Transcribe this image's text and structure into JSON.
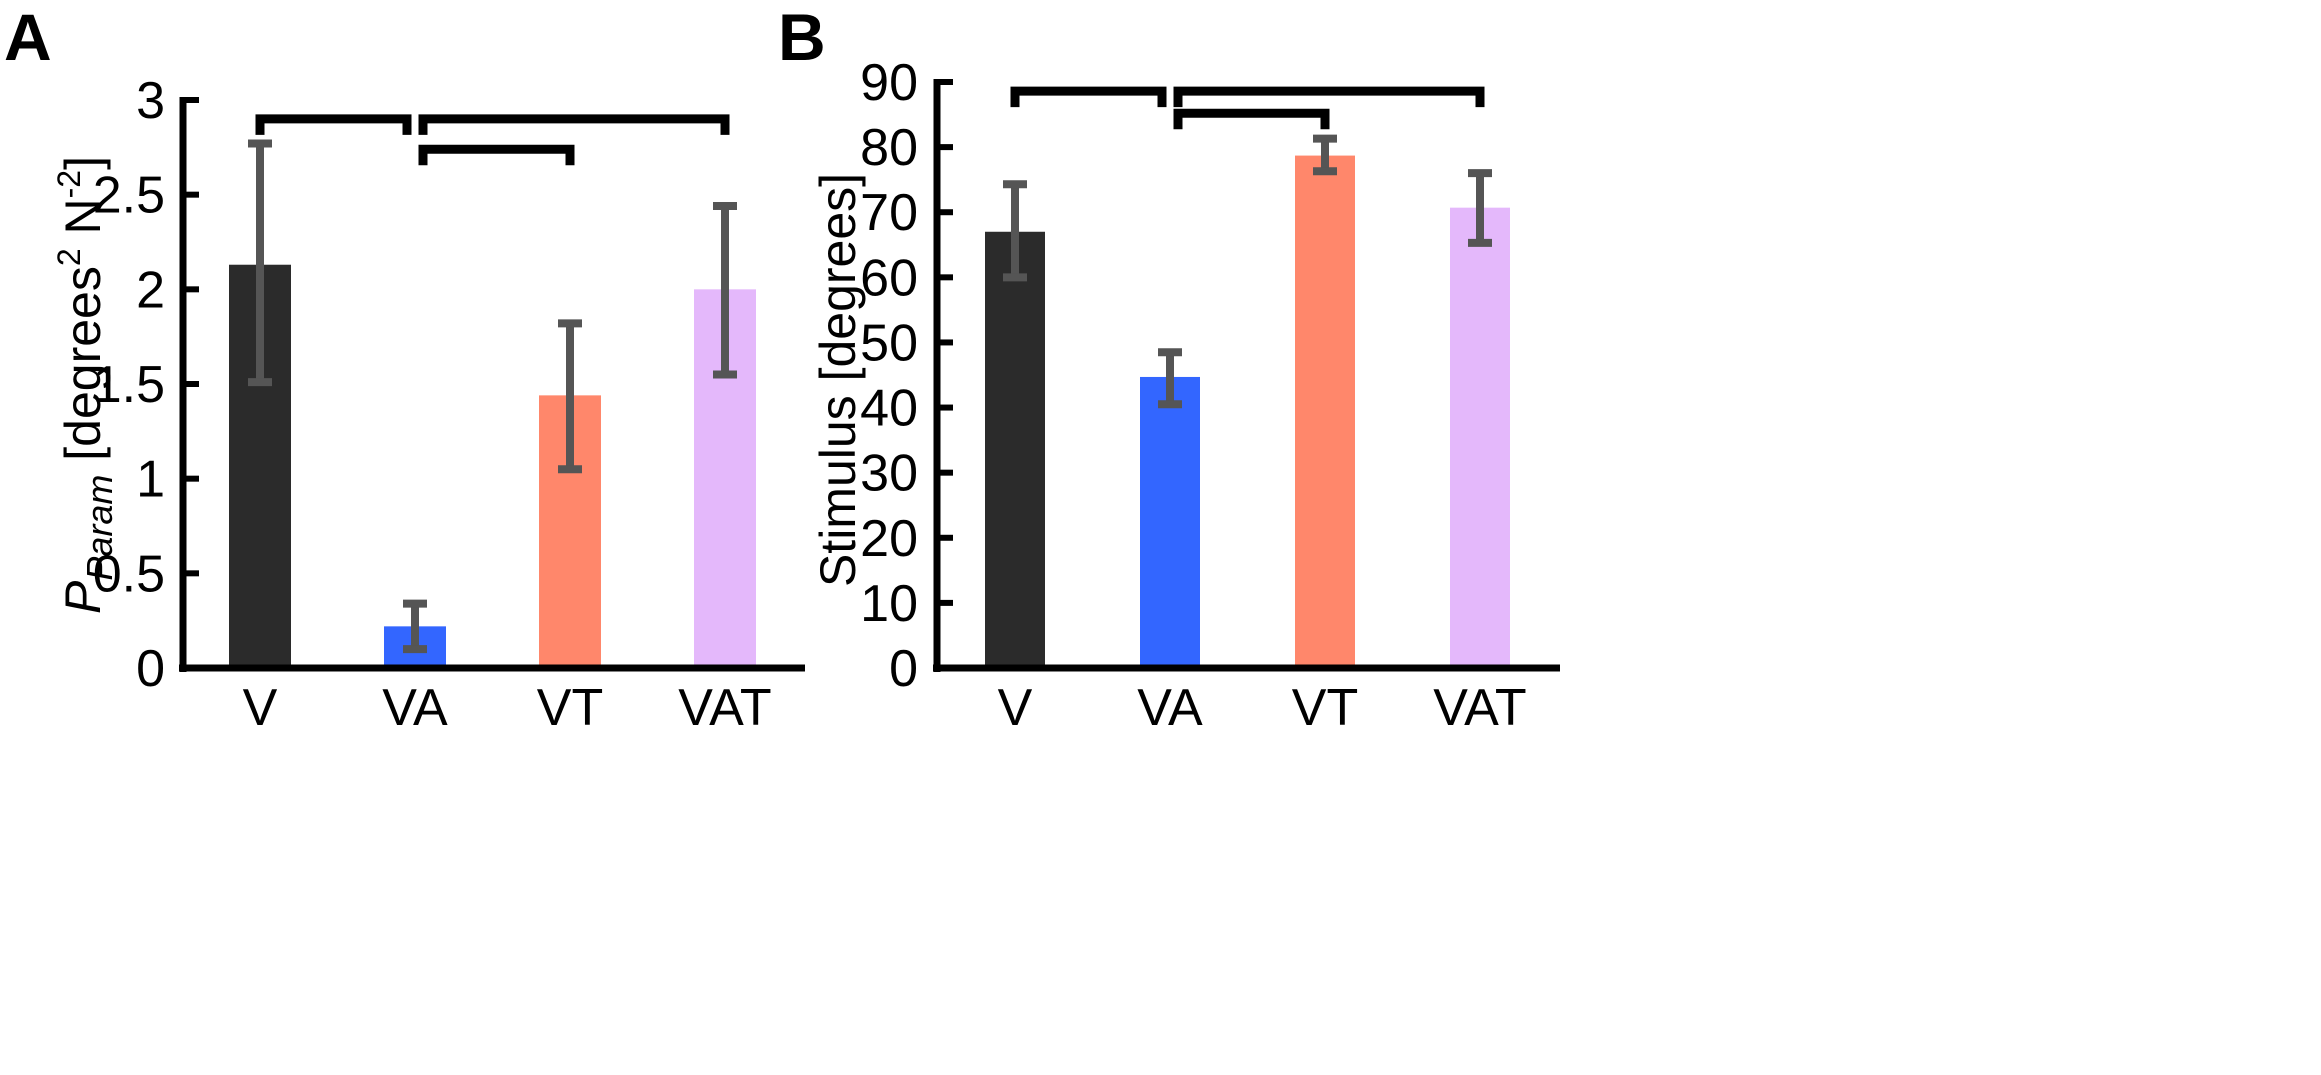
{
  "colors": {
    "axis": "#000000",
    "error_bar": "#555555",
    "bracket": "#000000",
    "V": "#2b2b2b",
    "VA": "#3366ff",
    "VT": "#ff876b",
    "VAT": "#e4b8fb"
  },
  "chart_data": [
    {
      "type": "bar",
      "panel_label": "A",
      "title": "",
      "categories": [
        "V",
        "VA",
        "VT",
        "VAT"
      ],
      "values": [
        2.13,
        0.22,
        1.44,
        2.0
      ],
      "error_low": [
        1.51,
        0.1,
        1.05,
        1.55
      ],
      "error_high": [
        2.77,
        0.34,
        1.82,
        2.44
      ],
      "ylim": [
        0,
        3
      ],
      "yticks": [
        0,
        0.5,
        1,
        1.5,
        2,
        2.5,
        3
      ],
      "ytick_labels": [
        "0",
        "0.5",
        "1",
        "1.5",
        "2",
        "2.5",
        "3"
      ],
      "ylabel": {
        "symbol": "P",
        "subscript": "Param",
        "unit_open": " [degrees",
        "unit_sup1": "2",
        "unit_mid": " N",
        "unit_sup2": "-2",
        "unit_close": "]"
      },
      "brackets": [
        {
          "from": "V",
          "to": "VA",
          "level": 2.9
        },
        {
          "from": "VA",
          "to": "VAT",
          "level": 2.9
        },
        {
          "from": "VA",
          "to": "VT",
          "level": 2.74
        }
      ]
    },
    {
      "type": "bar",
      "panel_label": "B",
      "title": "",
      "categories": [
        "V",
        "VA",
        "VT",
        "VAT"
      ],
      "values": [
        67,
        44.7,
        78.7,
        70.7
      ],
      "error_low": [
        60,
        40.5,
        76.3,
        65.3
      ],
      "error_high": [
        74.3,
        48.5,
        81.3,
        76
      ],
      "ylim": [
        0,
        90
      ],
      "yticks": [
        0,
        10,
        20,
        30,
        40,
        50,
        60,
        70,
        80,
        90
      ],
      "ytick_labels": [
        "0",
        "10",
        "20",
        "30",
        "40",
        "50",
        "60",
        "70",
        "80",
        "90"
      ],
      "ylabel": "Stimulus [degrees]",
      "brackets": [
        {
          "from": "V",
          "to": "VA",
          "level": 88.6
        },
        {
          "from": "VA",
          "to": "VAT",
          "level": 88.6
        },
        {
          "from": "VA",
          "to": "VT",
          "level": 85.2
        }
      ]
    }
  ]
}
